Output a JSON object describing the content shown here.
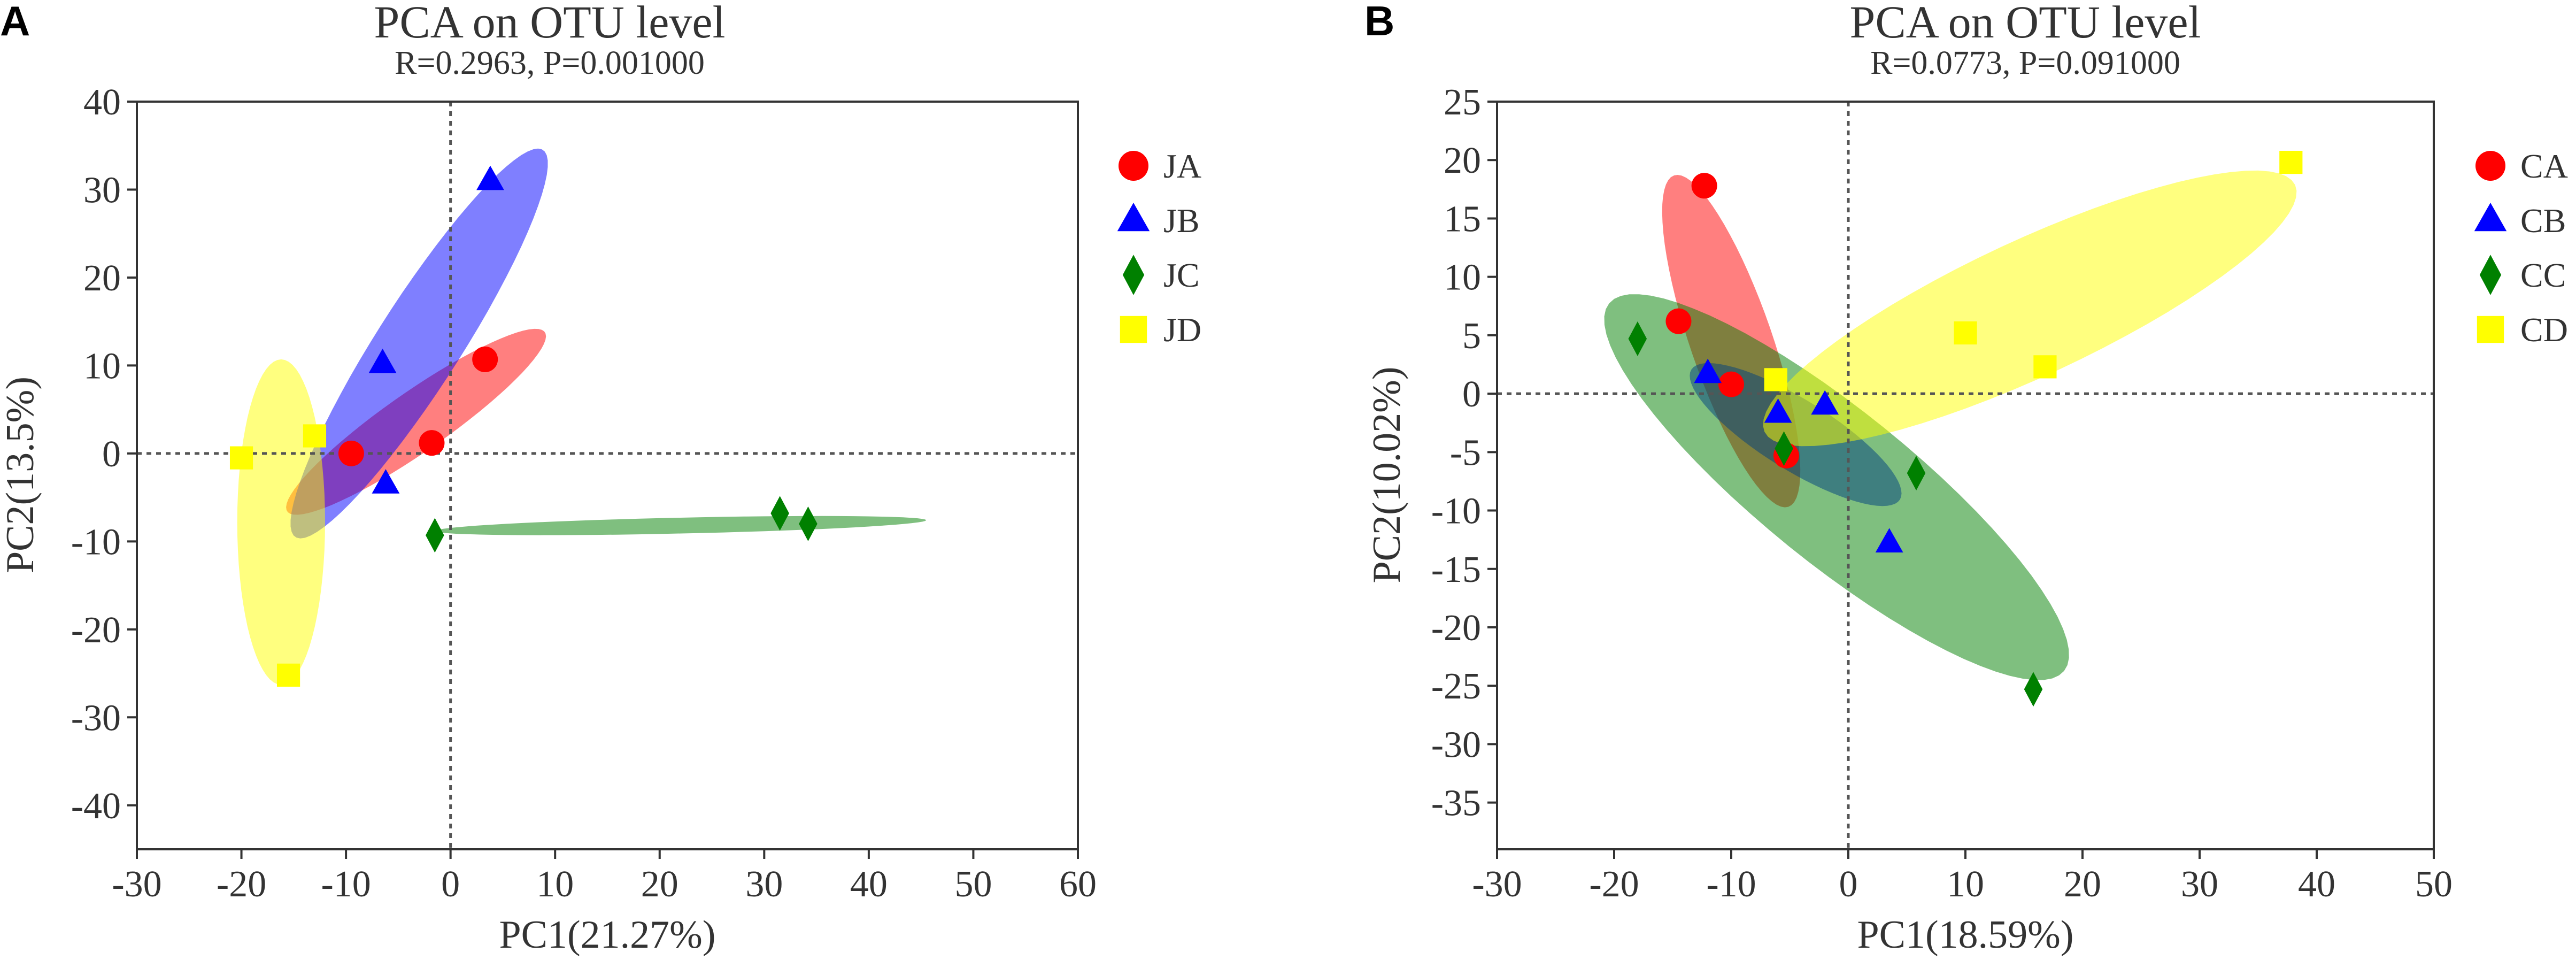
{
  "chart_data": [
    {
      "type": "scatter",
      "panel_label": "A",
      "title": "PCA on OTU level",
      "subtitle": "R=0.2963, P=0.001000",
      "xlabel": "PC1(21.27%)",
      "ylabel": "PC2(13.5%)",
      "xlim": [
        -30,
        60
      ],
      "ylim": [
        -45,
        40
      ],
      "xticks": [
        "-30",
        "-20",
        "-10",
        "0",
        "10",
        "20",
        "30",
        "40",
        "50",
        "60"
      ],
      "yticks": [
        "40",
        "30",
        "20",
        "10",
        "0",
        "-10",
        "-20",
        "-30",
        "-40"
      ],
      "xtick_values": [
        -30,
        -20,
        -10,
        0,
        10,
        20,
        30,
        40,
        50,
        60
      ],
      "ytick_values": [
        40,
        30,
        20,
        10,
        0,
        -10,
        -20,
        -30,
        -40
      ],
      "reference_lines": {
        "x": 0,
        "y": 0,
        "style": "dotted"
      },
      "legend_position": "right",
      "series": [
        {
          "name": "JA",
          "marker": "circle",
          "color": "#ff0000",
          "points": [
            [
              -9.5,
              0
            ],
            [
              -1.8,
              1.2
            ],
            [
              3.3,
              10.7
            ]
          ],
          "ellipse": {
            "cx": -3.3,
            "cy": 3.6,
            "rx": 16.0,
            "ry": 3.2,
            "angle": 40
          }
        },
        {
          "name": "JB",
          "marker": "triangle",
          "color": "#0000ff",
          "points": [
            [
              -6.5,
              10.2
            ],
            [
              -6.2,
              -3.5
            ],
            [
              3.8,
              31.0
            ]
          ],
          "ellipse": {
            "cx": -3.0,
            "cy": 12.5,
            "rx": 25.0,
            "ry": 4.2,
            "angle": 62
          }
        },
        {
          "name": "JC",
          "marker": "diamond",
          "color": "#008000",
          "points": [
            [
              -1.5,
              -9.3
            ],
            [
              31.5,
              -6.8
            ],
            [
              34.2,
              -8.0
            ]
          ],
          "ellipse": {
            "cx": 22.0,
            "cy": -8.2,
            "rx": 23.5,
            "ry": 0.9,
            "angle": 1.5
          }
        },
        {
          "name": "JD",
          "marker": "square",
          "color": "#ffff00",
          "points": [
            [
              -20.0,
              -0.5
            ],
            [
              -13.0,
              2.0
            ],
            [
              -15.5,
              -25.2
            ]
          ],
          "ellipse": {
            "cx": -16.2,
            "cy": -7.8,
            "rx": 4.2,
            "ry": 18.5,
            "angle": 0
          }
        }
      ]
    },
    {
      "type": "scatter",
      "panel_label": "B",
      "title": "PCA on OTU level",
      "subtitle": "R=0.0773, P=0.091000",
      "xlabel": "PC1(18.59%)",
      "ylabel": "PC2(10.02%)",
      "xlim": [
        -30,
        50
      ],
      "ylim": [
        -39,
        25
      ],
      "xticks": [
        "-30",
        "-20",
        "-10",
        "0",
        "10",
        "20",
        "30",
        "40",
        "50"
      ],
      "yticks": [
        "25",
        "20",
        "15",
        "10",
        "5",
        "0",
        "-5",
        "-10",
        "-15",
        "-20",
        "-25",
        "-30",
        "-35"
      ],
      "xtick_values": [
        -30,
        -20,
        -10,
        0,
        10,
        20,
        30,
        40,
        50
      ],
      "ytick_values": [
        25,
        20,
        15,
        10,
        5,
        0,
        -5,
        -10,
        -15,
        -20,
        -25,
        -30,
        -35
      ],
      "reference_lines": {
        "x": 0,
        "y": 0,
        "style": "dotted"
      },
      "legend_position": "right",
      "series": [
        {
          "name": "CA",
          "marker": "circle",
          "color": "#ff0000",
          "points": [
            [
              -12.3,
              17.8
            ],
            [
              -14.5,
              6.2
            ],
            [
              -10.0,
              0.8
            ],
            [
              -5.3,
              -5.3
            ]
          ],
          "ellipse": {
            "cx": -10.0,
            "cy": 4.5,
            "rx": 15.0,
            "ry": 3.5,
            "angle": -71
          }
        },
        {
          "name": "CB",
          "marker": "triangle",
          "color": "#0000ff",
          "points": [
            [
              -12.0,
              1.7
            ],
            [
              -6.0,
              -1.7
            ],
            [
              -2.0,
              -1.0
            ],
            [
              3.5,
              -12.8
            ]
          ],
          "ellipse": {
            "cx": -4.5,
            "cy": -3.5,
            "rx": 10.5,
            "ry": 3.0,
            "angle": -32
          }
        },
        {
          "name": "CC",
          "marker": "diamond",
          "color": "#008000",
          "points": [
            [
              -18.0,
              4.7
            ],
            [
              -5.5,
              -4.7
            ],
            [
              5.8,
              -6.8
            ],
            [
              15.8,
              -25.3
            ]
          ],
          "ellipse": {
            "cx": -1.0,
            "cy": -8.0,
            "rx": 25.0,
            "ry": 6.5,
            "angle": -39
          }
        },
        {
          "name": "CD",
          "marker": "square",
          "color": "#ffff00",
          "points": [
            [
              -6.2,
              1.2
            ],
            [
              10.0,
              5.2
            ],
            [
              16.8,
              2.3
            ],
            [
              37.8,
              19.8
            ]
          ],
          "ellipse": {
            "cx": 15.5,
            "cy": 7.3,
            "rx": 25.0,
            "ry": 5.8,
            "angle": 25
          }
        }
      ]
    }
  ]
}
